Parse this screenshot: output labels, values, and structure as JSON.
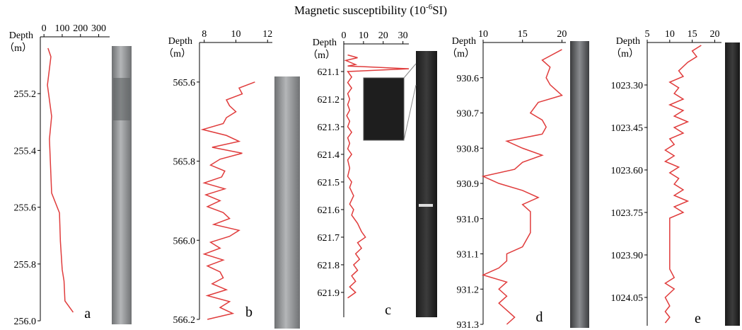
{
  "title": {
    "text": "Magnetic susceptibility (10",
    "superscript": "-6",
    "suffix": "SI)"
  },
  "chart_data": [
    {
      "type": "line",
      "orientation": "vertical",
      "label": "a",
      "axis_label": "Depth",
      "axis_unit": "（m）",
      "color": "#e03c3c",
      "x": [
        255.04,
        255.07,
        255.17,
        255.28,
        255.36,
        255.55,
        255.62,
        255.72,
        255.82,
        255.86,
        255.93,
        255.97
      ],
      "values": [
        22,
        38,
        19,
        42,
        30,
        42,
        85,
        90,
        100,
        110,
        115,
        160
      ],
      "xlim": [
        255.0,
        256.0
      ],
      "xticks": [
        255.2,
        255.4,
        255.6,
        255.8,
        {
          "value": 256,
          "label": "256.0"
        }
      ],
      "ylim": [
        -20,
        360
      ],
      "yticks": [
        0,
        100,
        200,
        300
      ]
    },
    {
      "type": "line",
      "orientation": "vertical",
      "label": "b",
      "axis_label": "Depth",
      "axis_unit": "（m）",
      "color": "#e03c3c",
      "x": [
        565.6,
        565.615,
        565.63,
        565.645,
        565.66,
        565.675,
        565.69,
        565.705,
        565.72,
        565.735,
        565.75,
        565.765,
        565.78,
        565.795,
        565.81,
        565.825,
        565.84,
        565.855,
        565.87,
        565.885,
        565.9,
        565.915,
        565.93,
        565.945,
        565.96,
        565.975,
        565.99,
        566.005,
        566.02,
        566.035,
        566.05,
        566.065,
        566.08,
        566.095,
        566.11,
        566.125,
        566.14,
        566.155,
        566.17,
        566.185,
        566.2
      ],
      "values": [
        11.2,
        10.2,
        10.4,
        9.4,
        9.6,
        10.0,
        9.4,
        9.2,
        7.9,
        9.4,
        10.2,
        8.5,
        10.4,
        9.0,
        8.4,
        9.3,
        9.1,
        8.0,
        9.3,
        8.1,
        9.0,
        8.2,
        9.2,
        9.6,
        8.6,
        10.2,
        9.6,
        8.4,
        9.0,
        8.0,
        9.2,
        8.2,
        9.0,
        9.2,
        8.5,
        9.4,
        8.2,
        9.6,
        9.0,
        9.8,
        8.2
      ],
      "xlim": [
        565.5,
        566.2
      ],
      "xticks": [
        565.6,
        565.8,
        {
          "value": 566,
          "label": "566.0"
        },
        566.2
      ],
      "ylim": [
        7.7,
        12.3
      ],
      "yticks": [
        8,
        10,
        12
      ]
    },
    {
      "type": "line",
      "orientation": "vertical",
      "label": "c",
      "axis_label": "Depth",
      "axis_unit": "（m）",
      "color": "#e03c3c",
      "x": [
        621.04,
        621.05,
        621.06,
        621.075,
        621.08,
        621.09,
        621.1,
        621.12,
        621.14,
        621.16,
        621.18,
        621.2,
        621.22,
        621.24,
        621.26,
        621.28,
        621.3,
        621.32,
        621.34,
        621.36,
        621.38,
        621.4,
        621.42,
        621.45,
        621.48,
        621.5,
        621.52,
        621.55,
        621.58,
        621.6,
        621.62,
        621.65,
        621.68,
        621.7,
        621.72,
        621.74,
        621.76,
        621.78,
        621.8,
        621.82,
        621.84,
        621.86,
        621.88,
        621.9,
        621.92
      ],
      "values": [
        2,
        7,
        1,
        6,
        2,
        33,
        2,
        4,
        2,
        4,
        2,
        3,
        2,
        3,
        1.5,
        3,
        2,
        4,
        2,
        3,
        2,
        4,
        2,
        3,
        2,
        4,
        3,
        5,
        3,
        5,
        4,
        7,
        9,
        11,
        7,
        9,
        6,
        8,
        5,
        7,
        4,
        6,
        3,
        6,
        2
      ],
      "xlim": [
        621.0,
        621.99
      ],
      "xticks": [
        621.1,
        621.2,
        621.3,
        621.4,
        621.5,
        621.6,
        621.7,
        621.8,
        621.9
      ],
      "ylim": [
        0,
        33
      ],
      "yticks": [
        0,
        10,
        20,
        30
      ]
    },
    {
      "type": "line",
      "orientation": "vertical",
      "label": "d",
      "axis_label": "Depth",
      "axis_unit": "（m）",
      "color": "#e03c3c",
      "x": [
        930.52,
        930.55,
        930.57,
        930.6,
        930.62,
        930.65,
        930.67,
        930.7,
        930.72,
        930.74,
        930.76,
        930.78,
        930.8,
        930.82,
        930.84,
        930.86,
        930.88,
        930.9,
        930.92,
        930.94,
        930.96,
        930.98,
        931.04,
        931.08,
        931.1,
        931.12,
        931.14,
        931.16,
        931.18,
        931.2,
        931.22,
        931.24,
        931.26,
        931.28,
        931.3
      ],
      "values": [
        20,
        17.5,
        18.5,
        18,
        18.5,
        20,
        17,
        16,
        17.5,
        18,
        17.5,
        13,
        15,
        17.5,
        15,
        14,
        10,
        12,
        15,
        17,
        15,
        16,
        16,
        15,
        13,
        13,
        12,
        10,
        13,
        12,
        13,
        12,
        13,
        14,
        13
      ],
      "xlim": [
        930.5,
        931.3
      ],
      "xticks": [
        930.6,
        930.7,
        930.8,
        930.9,
        {
          "value": 931,
          "label": "931.0"
        },
        931.1,
        931.2,
        931.3
      ],
      "ylim": [
        10,
        20.5
      ],
      "yticks": [
        10,
        15,
        20
      ]
    },
    {
      "type": "line",
      "orientation": "vertical",
      "label": "e",
      "axis_label": "Depth",
      "axis_unit": "（m）",
      "color": "#e03c3c",
      "x": [
        1023.16,
        1023.18,
        1023.2,
        1023.22,
        1023.25,
        1023.27,
        1023.29,
        1023.31,
        1023.33,
        1023.35,
        1023.37,
        1023.39,
        1023.41,
        1023.43,
        1023.45,
        1023.47,
        1023.49,
        1023.51,
        1023.53,
        1023.55,
        1023.57,
        1023.59,
        1023.61,
        1023.63,
        1023.65,
        1023.67,
        1023.69,
        1023.71,
        1023.73,
        1023.75,
        1023.77,
        1023.8,
        1023.85,
        1023.9,
        1023.95,
        1023.98,
        1024.0,
        1024.02,
        1024.05,
        1024.08,
        1024.1,
        1024.12,
        1024.14
      ],
      "values": [
        17,
        15,
        16,
        14,
        12,
        13,
        10,
        12,
        11,
        13,
        10,
        13,
        11,
        14,
        11,
        13,
        10,
        11,
        9,
        11,
        9,
        12,
        10,
        12,
        11,
        13,
        11,
        14,
        11,
        13,
        10,
        10,
        10,
        10,
        10,
        11,
        9,
        11,
        9,
        10,
        9,
        10,
        9
      ],
      "xlim": [
        1023.15,
        1024.15
      ],
      "xticks": [
        {
          "value": 1023.3,
          "label": "1023.30"
        },
        1023.45,
        {
          "value": 1023.6,
          "label": "1023.60"
        },
        1023.75,
        {
          "value": 1023.9,
          "label": "1023.90"
        },
        1024.05
      ],
      "ylim": [
        5,
        21.5
      ],
      "yticks": [
        5,
        10,
        15,
        20
      ]
    }
  ]
}
